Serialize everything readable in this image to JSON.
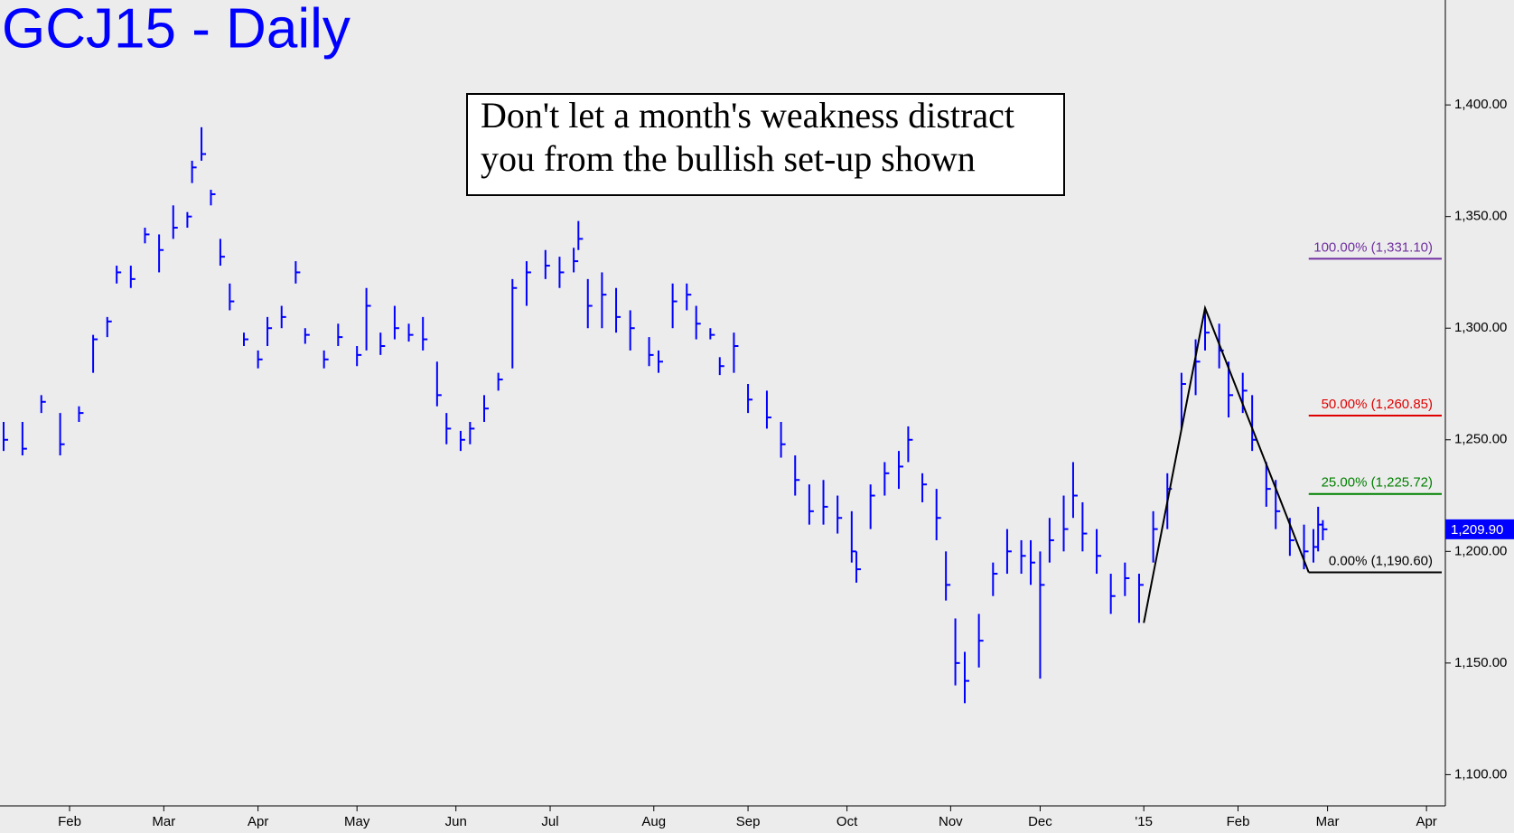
{
  "chart_data": {
    "type": "ohlc",
    "title": "GCJ15 - Daily",
    "annotation": [
      "Don't let a month's weakness distract",
      "you from the bullish set-up shown"
    ],
    "color": "#0000ff",
    "x": [
      0,
      4,
      8,
      12,
      16,
      19,
      22,
      24,
      27,
      30,
      33,
      36,
      39,
      40,
      42,
      44,
      46,
      48,
      51,
      54,
      56,
      59,
      62,
      64,
      68,
      71,
      75,
      77,
      80,
      83,
      86,
      89,
      92,
      94,
      97,
      99,
      102,
      105,
      108,
      111,
      115,
      118,
      121,
      122,
      124,
      127,
      130,
      133,
      137,
      139,
      142,
      145,
      147,
      150,
      152,
      155,
      158,
      162,
      165,
      168,
      171,
      174,
      177,
      180,
      181,
      184,
      187,
      190,
      192,
      195,
      198,
      200,
      202,
      204,
      207,
      210,
      213,
      216,
      218,
      220,
      222,
      225,
      227,
      229,
      232,
      235,
      238,
      241,
      244,
      247,
      250,
      253,
      255,
      258,
      260,
      263,
      265,
      268,
      270,
      273,
      276,
      278,
      279,
      280
    ],
    "high": [
      1258,
      1258,
      1270,
      1262,
      1265,
      1297,
      1305,
      1328,
      1328,
      1345,
      1342,
      1355,
      1352,
      1375,
      1390,
      1362,
      1340,
      1320,
      1298,
      1290,
      1305,
      1310,
      1330,
      1300,
      1290,
      1302,
      1292,
      1318,
      1298,
      1310,
      1302,
      1305,
      1285,
      1262,
      1254,
      1258,
      1270,
      1280,
      1322,
      1330,
      1335,
      1332,
      1336,
      1348,
      1322,
      1325,
      1318,
      1308,
      1296,
      1290,
      1320,
      1320,
      1310,
      1300,
      1287,
      1298,
      1275,
      1272,
      1258,
      1243,
      1230,
      1232,
      1225,
      1218,
      1200,
      1230,
      1240,
      1245,
      1256,
      1235,
      1228,
      1200,
      1170,
      1155,
      1172,
      1195,
      1210,
      1205,
      1205,
      1200,
      1215,
      1225,
      1240,
      1222,
      1210,
      1190,
      1195,
      1190,
      1218,
      1235,
      1280,
      1295,
      1309,
      1302,
      1285,
      1280,
      1270,
      1240,
      1232,
      1215,
      1212,
      1210,
      1220,
      1214
    ],
    "low": [
      1245,
      1243,
      1262,
      1243,
      1258,
      1280,
      1296,
      1320,
      1318,
      1338,
      1325,
      1340,
      1345,
      1365,
      1375,
      1355,
      1328,
      1308,
      1292,
      1282,
      1292,
      1300,
      1320,
      1293,
      1282,
      1292,
      1283,
      1290,
      1288,
      1295,
      1294,
      1290,
      1265,
      1248,
      1245,
      1248,
      1258,
      1272,
      1282,
      1310,
      1322,
      1318,
      1325,
      1335,
      1300,
      1300,
      1298,
      1290,
      1283,
      1280,
      1300,
      1308,
      1295,
      1295,
      1279,
      1280,
      1262,
      1255,
      1242,
      1225,
      1212,
      1212,
      1208,
      1195,
      1186,
      1210,
      1225,
      1228,
      1240,
      1222,
      1205,
      1178,
      1140,
      1132,
      1148,
      1180,
      1190,
      1190,
      1185,
      1143,
      1195,
      1200,
      1215,
      1200,
      1190,
      1172,
      1180,
      1168,
      1195,
      1210,
      1255,
      1270,
      1290,
      1282,
      1260,
      1262,
      1245,
      1220,
      1210,
      1198,
      1192,
      1195,
      1200,
      1205
    ],
    "close": [
      1250,
      1246,
      1267,
      1248,
      1262,
      1295,
      1303,
      1325,
      1322,
      1342,
      1335,
      1345,
      1350,
      1372,
      1378,
      1360,
      1332,
      1312,
      1295,
      1286,
      1300,
      1305,
      1325,
      1297,
      1286,
      1296,
      1288,
      1310,
      1292,
      1300,
      1297,
      1295,
      1270,
      1255,
      1250,
      1255,
      1264,
      1277,
      1318,
      1325,
      1328,
      1325,
      1330,
      1340,
      1310,
      1315,
      1305,
      1300,
      1288,
      1285,
      1312,
      1315,
      1302,
      1297,
      1283,
      1292,
      1268,
      1260,
      1248,
      1232,
      1218,
      1220,
      1215,
      1200,
      1192,
      1225,
      1235,
      1238,
      1250,
      1230,
      1215,
      1185,
      1150,
      1142,
      1160,
      1190,
      1200,
      1198,
      1195,
      1185,
      1205,
      1210,
      1225,
      1208,
      1198,
      1180,
      1188,
      1185,
      1210,
      1228,
      1275,
      1285,
      1298,
      1290,
      1270,
      1272,
      1250,
      1228,
      1218,
      1205,
      1200,
      1202,
      1212,
      1209.9
    ],
    "xlim": [
      0,
      306
    ],
    "xticks": [
      {
        "value": 14,
        "label": "Feb"
      },
      {
        "value": 34,
        "label": "Mar"
      },
      {
        "value": 54,
        "label": "Apr"
      },
      {
        "value": 75,
        "label": "May"
      },
      {
        "value": 96,
        "label": "Jun"
      },
      {
        "value": 116,
        "label": "Jul"
      },
      {
        "value": 138,
        "label": "Aug"
      },
      {
        "value": 158,
        "label": "Sep"
      },
      {
        "value": 179,
        "label": "Oct"
      },
      {
        "value": 201,
        "label": "Nov"
      },
      {
        "value": 220,
        "label": "Dec"
      },
      {
        "value": 242,
        "label": "'15"
      },
      {
        "value": 262,
        "label": "Feb"
      },
      {
        "value": 281,
        "label": "Mar"
      },
      {
        "value": 302,
        "label": "Apr"
      }
    ],
    "ylim": [
      1086,
      1447
    ],
    "yticks": [
      {
        "value": 1100,
        "label": "1,100.00"
      },
      {
        "value": 1150,
        "label": "1,150.00"
      },
      {
        "value": 1200,
        "label": "1,200.00"
      },
      {
        "value": 1250,
        "label": "1,250.00"
      },
      {
        "value": 1300,
        "label": "1,300.00"
      },
      {
        "value": 1350,
        "label": "1,350.00"
      },
      {
        "value": 1400,
        "label": "1,400.00"
      }
    ],
    "swing": {
      "x": [
        242,
        255,
        277
      ],
      "values": [
        1168,
        1309,
        1190.6
      ],
      "color": "#000000"
    },
    "levels": [
      {
        "value": 1331.1,
        "label": "100.00% (1,331.10)",
        "color": "#7030a0"
      },
      {
        "value": 1260.85,
        "label": "50.00% (1,260.85)",
        "color": "#e00000"
      },
      {
        "value": 1225.72,
        "label": "25.00% (1,225.72)",
        "color": "#008000"
      },
      {
        "value": 1190.6,
        "label": "0.00% (1,190.60)",
        "color": "#000000"
      }
    ],
    "last": {
      "value": 1209.9,
      "label": "1,209.90"
    }
  }
}
